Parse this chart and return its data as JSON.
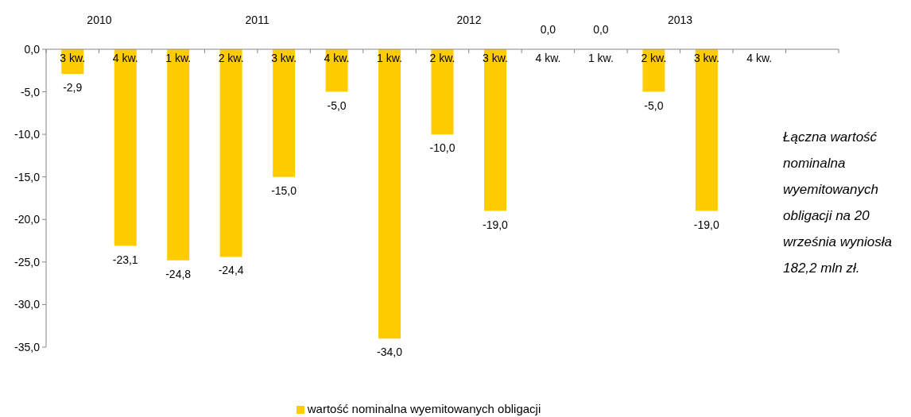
{
  "chart_data": {
    "type": "bar",
    "categories": [
      "3 kw.",
      "4 kw.",
      "1 kw.",
      "2 kw.",
      "3 kw.",
      "4 kw.",
      "1 kw.",
      "2 kw.",
      "3 kw.",
      "4 kw.",
      "1 kw.",
      "2 kw.",
      "3 kw.",
      "4 kw.",
      null
    ],
    "series": [
      {
        "name": "wartość nominalna wyemitowanych obligacji",
        "color": "#ffcc00",
        "values": [
          -2.9,
          -23.1,
          -24.8,
          -24.4,
          -15.0,
          -5.0,
          -34.0,
          -10.0,
          -19.0,
          0.0,
          0.0,
          -5.0,
          -19.0,
          null,
          null
        ],
        "value_labels": [
          "-2,9",
          "-23,1",
          "-24,8",
          "-24,4",
          "-15,0",
          "-5,0",
          "-34,0",
          "-10,0",
          "-19,0",
          "0,0",
          "0,0",
          "-5,0",
          "-19,0",
          null,
          null
        ]
      }
    ],
    "ylim": [
      -35,
      0
    ],
    "yticks": [
      {
        "value": 0,
        "label": "0,0"
      },
      {
        "value": -5,
        "label": "-5,0"
      },
      {
        "value": -10,
        "label": "-10,0"
      },
      {
        "value": -15,
        "label": "-15,0"
      },
      {
        "value": -20,
        "label": "-20,0"
      },
      {
        "value": -25,
        "label": "-25,0"
      },
      {
        "value": -30,
        "label": "-30,0"
      },
      {
        "value": -35,
        "label": "-35,0"
      }
    ],
    "x2lim": [
      "2010-07",
      "2014-04"
    ],
    "x2ticks": [
      {
        "value": "2010-10",
        "label": "2010"
      },
      {
        "value": "2011-07",
        "label": "2011"
      },
      {
        "value": "2012-07",
        "label": "2012"
      },
      {
        "value": "2013-07",
        "label": "2013"
      }
    ],
    "annotations": [
      "Łączna wartość nominalna wyemitowanych obligacji na 20 września wyniosła 182,2 mln zł."
    ],
    "legend": "bottom"
  }
}
